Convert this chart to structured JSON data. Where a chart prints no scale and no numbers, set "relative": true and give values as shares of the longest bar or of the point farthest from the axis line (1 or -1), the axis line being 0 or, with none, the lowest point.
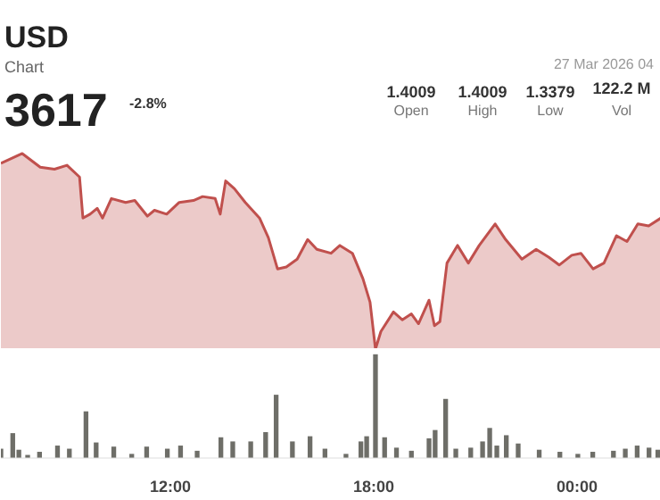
{
  "chart_data": [
    {
      "type": "other",
      "title": "USD",
      "subtitle": "Chart",
      "annotations": [
        "3617",
        "-2.8%",
        "1.4009",
        "Open",
        "1.4009",
        "High",
        "1.3379",
        "Low",
        "122.2 M",
        "Vol",
        "27 Mar 2026 04"
      ]
    },
    {
      "type": "area",
      "relative": true,
      "xlim": [
        7,
        26.47
      ],
      "tick_labels": false,
      "x": [
        7.0,
        7.63,
        8.16,
        8.58,
        8.95,
        9.32,
        9.42,
        9.63,
        9.84,
        10.0,
        10.26,
        10.68,
        10.95,
        11.32,
        11.53,
        11.89,
        12.26,
        12.68,
        12.95,
        13.32,
        13.47,
        13.63,
        13.89,
        14.21,
        14.63,
        14.89,
        15.16,
        15.42,
        15.74,
        16.05,
        16.32,
        16.74,
        17.0,
        17.37,
        17.68,
        17.89,
        18.05,
        18.21,
        18.58,
        18.84,
        19.11,
        19.32,
        19.63,
        19.79,
        19.95,
        20.16,
        20.47,
        20.79,
        21.11,
        21.58,
        21.89,
        22.37,
        22.79,
        23.16,
        23.47,
        23.84,
        24.11,
        24.47,
        24.79,
        25.16,
        25.47,
        25.79,
        26.11,
        26.47
      ],
      "series": [
        {
          "color": "#c0504d",
          "values": [
            0.95,
            1,
            0.93,
            0.92,
            0.94,
            0.88,
            0.67,
            0.69,
            0.72,
            0.67,
            0.77,
            0.75,
            0.76,
            0.68,
            0.71,
            0.69,
            0.75,
            0.76,
            0.78,
            0.77,
            0.69,
            0.86,
            0.82,
            0.75,
            0.67,
            0.57,
            0.41,
            0.42,
            0.46,
            0.56,
            0.51,
            0.49,
            0.53,
            0.49,
            0.36,
            0.24,
            0,
            0.09,
            0.19,
            0.15,
            0.18,
            0.13,
            0.25,
            0.12,
            0.14,
            0.44,
            0.53,
            0.44,
            0.53,
            0.64,
            0.56,
            0.46,
            0.51,
            0.47,
            0.43,
            0.48,
            0.49,
            0.41,
            0.44,
            0.58,
            0.55,
            0.64,
            0.63,
            0.67
          ]
        }
      ]
    },
    {
      "type": "bar",
      "relative": true,
      "xlim": [
        7,
        26.47
      ],
      "tick_labels": "x",
      "xticks": [
        {
          "value": 12,
          "label": "12:00"
        },
        {
          "value": 18,
          "label": "18:00"
        },
        {
          "value": 24,
          "label": "00:00"
        }
      ],
      "x": [
        7.0,
        7.35,
        7.53,
        7.79,
        8.14,
        8.67,
        9.02,
        9.51,
        9.81,
        10.33,
        10.86,
        11.3,
        11.91,
        12.3,
        12.79,
        13.49,
        13.84,
        14.37,
        14.81,
        15.12,
        15.6,
        16.12,
        16.56,
        17.18,
        17.62,
        17.79,
        18.05,
        18.32,
        18.67,
        19.11,
        19.63,
        19.81,
        20.12,
        20.42,
        20.86,
        21.21,
        21.42,
        21.63,
        21.91,
        22.26,
        22.88,
        23.49,
        24.02,
        24.46,
        25.07,
        25.42,
        25.77,
        26.12,
        26.38
      ],
      "series": [
        {
          "color": "#6e6e68",
          "values": [
            0.09,
            0.24,
            0.08,
            0.03,
            0.06,
            0.12,
            0.09,
            0.45,
            0.15,
            0.11,
            0.04,
            0.11,
            0.09,
            0.12,
            0.07,
            0.2,
            0.16,
            0.16,
            0.25,
            0.61,
            0.16,
            0.21,
            0.09,
            0.04,
            0.16,
            0.21,
            1,
            0.2,
            0.1,
            0.07,
            0.19,
            0.27,
            0.57,
            0.09,
            0.1,
            0.16,
            0.29,
            0.12,
            0.22,
            0.14,
            0.08,
            0.06,
            0.04,
            0.06,
            0.07,
            0.09,
            0.12,
            0.1,
            0.08
          ]
        }
      ]
    }
  ]
}
